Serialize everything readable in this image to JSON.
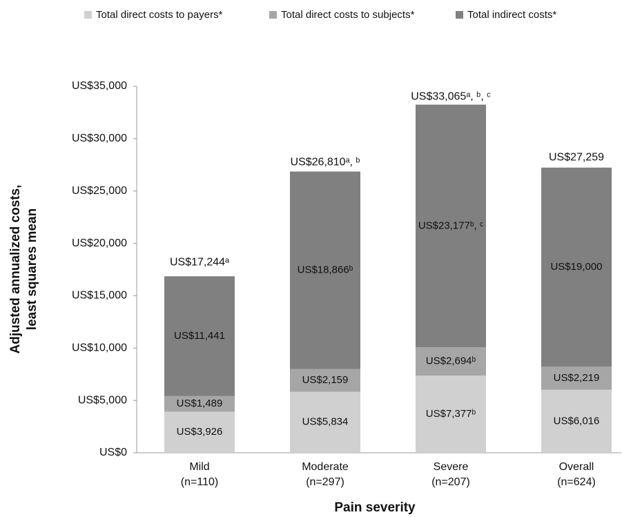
{
  "chart_data": {
    "type": "stacked-bar",
    "xlabel": "Pain severity",
    "ylabel": [
      "Adjusted annualized costs,",
      "least squares mean"
    ],
    "categories": [
      "Mild",
      "Moderate",
      "Severe",
      "Overall"
    ],
    "category_counts": [
      "(n=110)",
      "(n=297)",
      "(n=207)",
      "(n=624)"
    ],
    "series": [
      {
        "name": "Total direct costs to payers*",
        "color": "#d0d0d0",
        "values": [
          3926,
          5834,
          7377,
          6016
        ],
        "value_labels": [
          "US$3,926",
          "US$5,834",
          "US$7,377ᵇ",
          "US$6,016"
        ]
      },
      {
        "name": "Total direct costs to subjects*",
        "color": "#a6a6a6",
        "values": [
          1489,
          2159,
          2694,
          2219
        ],
        "value_labels": [
          "US$1,489",
          "US$2,159",
          "US$2,694ᵇ",
          "US$2,219"
        ]
      },
      {
        "name": "Total indirect costs*",
        "color": "#808080",
        "values": [
          11441,
          18866,
          23177,
          19000
        ],
        "value_labels": [
          "US$11,441",
          "US$18,866ᵇ",
          "US$23,177ᵇ, ᶜ",
          "US$19,000"
        ]
      }
    ],
    "totals": {
      "values": [
        17244,
        26810,
        33065,
        27259
      ],
      "value_labels": [
        "US$17,244ᵃ",
        "US$26,810ᵃ, ᵇ",
        "US$33,065ᵃ, ᵇ, ᶜ",
        "US$27,259"
      ]
    },
    "ylim": [
      0,
      35000
    ],
    "yticks": [
      {
        "value": 0,
        "label": "US$0"
      },
      {
        "value": 5000,
        "label": "US$5,000"
      },
      {
        "value": 10000,
        "label": "US$10,000"
      },
      {
        "value": 15000,
        "label": "US$15,000"
      },
      {
        "value": 20000,
        "label": "US$20,000"
      },
      {
        "value": 25000,
        "label": "US$25,000"
      },
      {
        "value": 30000,
        "label": "US$30,000"
      },
      {
        "value": 35000,
        "label": "US$35,000"
      }
    ],
    "grid": false,
    "legend": "top"
  }
}
